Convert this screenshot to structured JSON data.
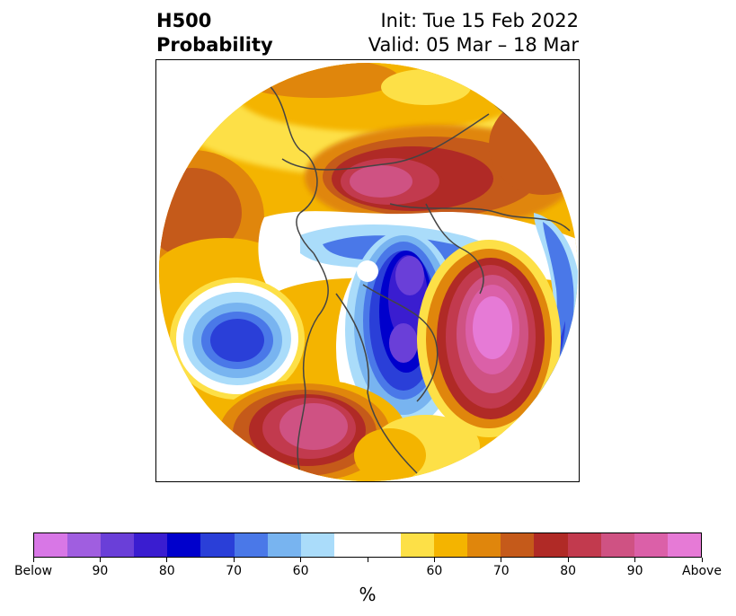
{
  "title": {
    "left_line1": "H500",
    "left_line2": "Probability",
    "right_line1": "Init: Tue 15 Feb 2022",
    "right_line2": "Valid: 05 Mar – 18 Mar"
  },
  "colorbar": {
    "colors": [
      "#d877e6",
      "#a05ee0",
      "#6a3fd8",
      "#3a1dd0",
      "#0000cc",
      "#2a3fd8",
      "#4a78e8",
      "#78b4f0",
      "#aadcfa",
      "#ffffff",
      "#ffffff",
      "#fde047",
      "#f4b400",
      "#e0860c",
      "#c55a1a",
      "#b02a26",
      "#c23a4e",
      "#cf5283",
      "#db60a8",
      "#e67ad6"
    ],
    "tick_labels": [
      "Below",
      "90",
      "80",
      "70",
      "60",
      "",
      "60",
      "70",
      "80",
      "90",
      "Above"
    ],
    "unit": "%"
  },
  "map": {
    "description_colors": {
      "land_outline": "#444444",
      "pole_marker": "#ffffff"
    }
  }
}
